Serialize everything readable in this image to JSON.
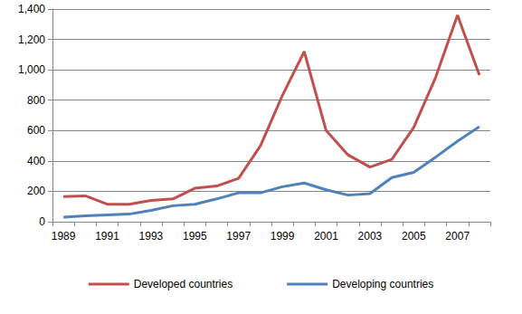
{
  "chart_data": {
    "type": "line",
    "categories": [
      "1989",
      null,
      "1991",
      null,
      "1993",
      null,
      "1995",
      null,
      "1997",
      null,
      "1999",
      null,
      "2001",
      null,
      "2003",
      null,
      "2005",
      null,
      "2007",
      null
    ],
    "series": [
      {
        "name": "Developed countries",
        "color": "#c0504d",
        "values": [
          165,
          170,
          115,
          115,
          140,
          150,
          220,
          235,
          285,
          500,
          830,
          1120,
          600,
          440,
          360,
          410,
          620,
          950,
          1360,
          965
        ]
      },
      {
        "name": "Developing countries",
        "color": "#4f81bd",
        "values": [
          30,
          38,
          45,
          50,
          75,
          105,
          115,
          150,
          190,
          190,
          230,
          255,
          210,
          175,
          185,
          290,
          325,
          425,
          530,
          625
        ]
      }
    ],
    "ylim": [
      0,
      1400
    ],
    "yticks": [
      0,
      200,
      400,
      600,
      800,
      1000,
      1200,
      1400
    ],
    "grid": true,
    "legend": "bottom",
    "marker": "none"
  }
}
